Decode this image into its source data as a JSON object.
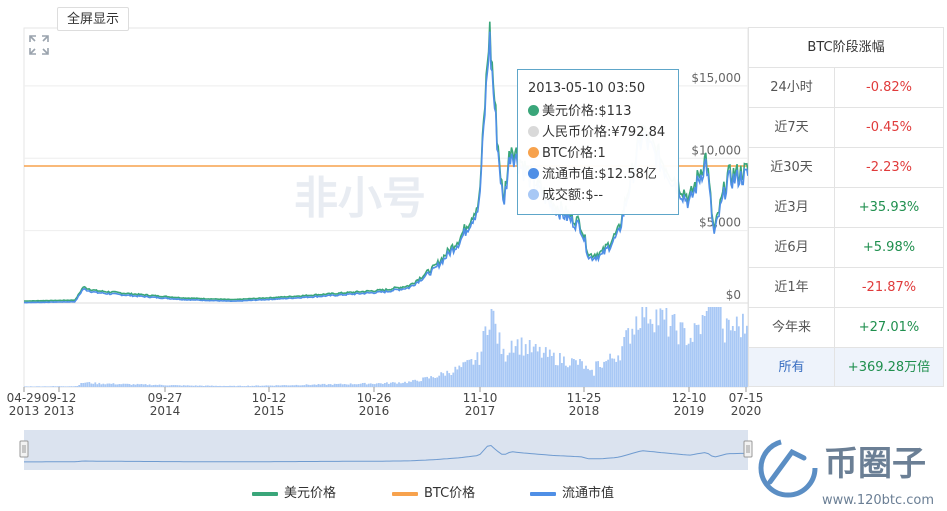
{
  "toolbar": {
    "fullscreen_label": "全屏显示"
  },
  "icons": {
    "expand": "expand-arrows-icon"
  },
  "watermark": {
    "text": "非小号"
  },
  "tooltip": {
    "time": "2013-05-10 03:50",
    "rows": [
      {
        "text": "美元价格:$113",
        "color": "#3aa67a"
      },
      {
        "text": "人民币价格:¥792.84",
        "color": "#d9d9d9"
      },
      {
        "text": "BTC价格:1",
        "color": "#f7a24d"
      },
      {
        "text": "流通市值:$12.58亿",
        "color": "#4f8fe6"
      },
      {
        "text": "成交额:$--",
        "color": "#a8c8f5"
      }
    ]
  },
  "panel": {
    "title": "BTC阶段涨幅",
    "rows": [
      {
        "label": "24小时",
        "value": "-0.82%",
        "trend": "neg"
      },
      {
        "label": "近7天",
        "value": "-0.45%",
        "trend": "neg"
      },
      {
        "label": "近30天",
        "value": "-2.23%",
        "trend": "neg"
      },
      {
        "label": "近3月",
        "value": "+35.93%",
        "trend": "pos"
      },
      {
        "label": "近6月",
        "value": "+5.98%",
        "trend": "pos"
      },
      {
        "label": "近1年",
        "value": "-21.87%",
        "trend": "neg"
      },
      {
        "label": "今年来",
        "value": "+27.01%",
        "trend": "pos"
      },
      {
        "label": "所有",
        "value": "+369.28万倍",
        "trend": "pos",
        "selected": true
      }
    ]
  },
  "brand": {
    "name": "币圈子",
    "url": "www.120btc.com"
  },
  "colors": {
    "usd": "#3aa67a",
    "btc": "#f7a24d",
    "mcap": "#4f8fe6",
    "volume": "#a8c8f5",
    "navigator": "#dbe3ef"
  },
  "chart_data": {
    "type": "line",
    "x_ticks": [
      {
        "top": "04-29",
        "bottom": "2013"
      },
      {
        "top": "09-12",
        "bottom": "2013"
      },
      {
        "top": "09-27",
        "bottom": "2014"
      },
      {
        "top": "10-12",
        "bottom": "2015"
      },
      {
        "top": "10-26",
        "bottom": "2016"
      },
      {
        "top": "11-10",
        "bottom": "2017"
      },
      {
        "top": "11-25",
        "bottom": "2018"
      },
      {
        "top": "12-10",
        "bottom": "2019"
      },
      {
        "top": "07-15",
        "bottom": "2020"
      }
    ],
    "y_ticks": [
      "$0",
      "$5,000",
      "$10,000",
      "$15,000"
    ],
    "ylim": [
      0,
      19000
    ],
    "series": [
      {
        "name": "美元价格",
        "key": "usd"
      },
      {
        "name": "BTC价格",
        "key": "btc",
        "values": [
          1,
          1
        ]
      },
      {
        "name": "流通市值",
        "key": "mcap"
      }
    ],
    "usd_price": {
      "x": [
        "2013-04-29",
        "2013-11-01",
        "2013-11-30",
        "2014-01-15",
        "2014-06-01",
        "2014-12-01",
        "2015-06-01",
        "2015-12-01",
        "2016-06-01",
        "2016-12-01",
        "2017-03-01",
        "2017-06-01",
        "2017-09-01",
        "2017-11-10",
        "2017-12-17",
        "2018-01-15",
        "2018-02-06",
        "2018-03-05",
        "2018-05-01",
        "2018-08-01",
        "2018-11-15",
        "2018-12-15",
        "2019-02-01",
        "2019-04-01",
        "2019-06-26",
        "2019-09-01",
        "2019-12-15",
        "2020-02-14",
        "2020-03-13",
        "2020-05-01",
        "2020-07-15"
      ],
      "values": [
        135,
        200,
        1100,
        850,
        620,
        350,
        230,
        420,
        650,
        900,
        1200,
        2500,
        4500,
        7000,
        19000,
        11500,
        7000,
        11000,
        9200,
        7000,
        5500,
        3300,
        3500,
        5000,
        12000,
        10000,
        7200,
        10200,
        4900,
        8800,
        9200
      ]
    },
    "navigator": true
  }
}
